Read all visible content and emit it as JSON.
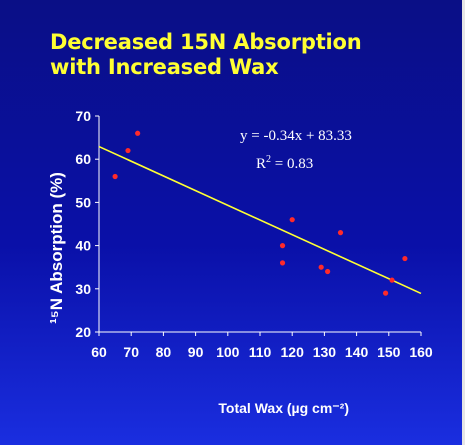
{
  "slide": {
    "title_line1": "Decreased 15N Absorption",
    "title_line2": "with Increased Wax"
  },
  "chart_data": {
    "type": "scatter",
    "title": "Decreased 15N Absorption with Increased Wax",
    "xlabel": "Total Wax (µg cm⁻²)",
    "ylabel": "¹⁵N Absorption (%)",
    "xlim": [
      60,
      160
    ],
    "ylim": [
      20,
      70
    ],
    "x_ticks": [
      "60",
      "70",
      "80",
      "90",
      "100",
      "110",
      "120",
      "130",
      "140",
      "150",
      "160"
    ],
    "y_ticks": [
      "20",
      "30",
      "40",
      "50",
      "60",
      "70"
    ],
    "points": [
      {
        "x": 65,
        "y": 56
      },
      {
        "x": 69,
        "y": 62
      },
      {
        "x": 72,
        "y": 66
      },
      {
        "x": 117,
        "y": 40
      },
      {
        "x": 117,
        "y": 36
      },
      {
        "x": 120,
        "y": 46
      },
      {
        "x": 129,
        "y": 35
      },
      {
        "x": 131,
        "y": 34
      },
      {
        "x": 135,
        "y": 43
      },
      {
        "x": 149,
        "y": 29
      },
      {
        "x": 151,
        "y": 32
      },
      {
        "x": 155,
        "y": 37
      }
    ],
    "trendline": {
      "slope": -0.34,
      "intercept": 83.33,
      "x_start": 60,
      "x_end": 160
    },
    "equation": "y = -0.34x + 83.33",
    "r2_prefix": "R",
    "r2_exp": "2",
    "r2_value": " = 0.83",
    "grid": false,
    "colors": {
      "background_top": "#0a0f86",
      "background_bottom": "#1a2ee0",
      "title": "#ffff33",
      "points": "#ff2a2a",
      "trendline": "#ffff33",
      "text": "#ffffff"
    }
  }
}
